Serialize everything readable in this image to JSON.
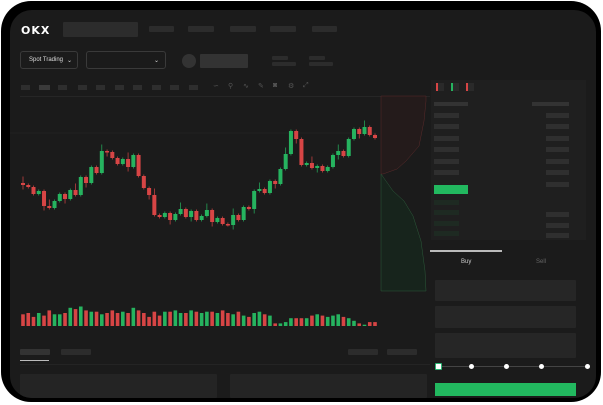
{
  "header": {
    "logo": "OKX"
  },
  "market_bar": {
    "mode_label": "Spot Trading",
    "mode_chevron": "chevron-down-icon",
    "pair_chevron": "chevron-down-icon"
  },
  "toolbar": {
    "icons": [
      "line-style-icon",
      "indicator-icon",
      "wave-icon",
      "ruler-icon",
      "camera-icon",
      "settings-icon",
      "fullscreen-icon"
    ]
  },
  "orderbook": {
    "view_icons": [
      "both-sides-icon",
      "bids-only-icon",
      "asks-only-icon"
    ]
  },
  "trade": {
    "buy_label": "Buy",
    "sell_label": "Sell",
    "slider_percent": 0
  },
  "colors": {
    "up": "#26b35f",
    "down": "#d74545",
    "accent": "#22b85f"
  },
  "chart": {
    "type": "candlestick",
    "closes": [
      66,
      64,
      57,
      60,
      45,
      43,
      50,
      57,
      52,
      61,
      56,
      74,
      68,
      84,
      78,
      100,
      99,
      93,
      87,
      92,
      84,
      96,
      75,
      63,
      56,
      36,
      34,
      38,
      31,
      37,
      42,
      34,
      40,
      31,
      35,
      41,
      29,
      33,
      27,
      26,
      36,
      31,
      44,
      42,
      60,
      62,
      58,
      70,
      67,
      82,
      97,
      120,
      112,
      86,
      88,
      83,
      85,
      80,
      84,
      96,
      100,
      95,
      112,
      122,
      117,
      124,
      116,
      113
    ],
    "volumes": [
      9,
      10,
      7,
      10,
      8,
      12,
      9,
      9,
      10,
      14,
      13,
      15,
      12,
      11,
      11,
      9,
      10,
      12,
      10,
      11,
      10,
      14,
      12,
      10,
      7,
      11,
      8,
      11,
      11,
      12,
      10,
      10,
      12,
      11,
      10,
      11,
      11,
      10,
      12,
      10,
      9,
      11,
      8,
      7,
      10,
      11,
      9,
      8,
      2,
      2,
      3,
      6,
      6,
      6,
      6,
      8,
      9,
      8,
      7,
      8,
      9,
      7,
      6,
      4,
      2,
      1,
      3,
      3
    ]
  }
}
